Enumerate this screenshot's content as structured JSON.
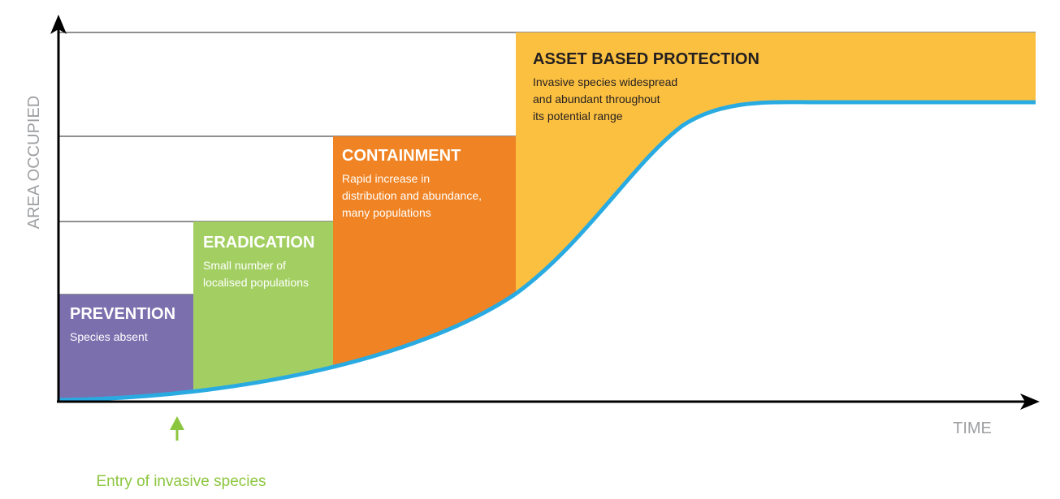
{
  "axes": {
    "y_label": "AREA OCCUPIED",
    "x_label": "TIME"
  },
  "stages": [
    {
      "title": "PREVENTION",
      "description": [
        "Species absent"
      ]
    },
    {
      "title": "ERADICATION",
      "description": [
        "Small number of",
        "localised populations"
      ]
    },
    {
      "title": "CONTAINMENT",
      "description": [
        "Rapid increase in",
        "distribution and abundance,",
        "many populations"
      ]
    },
    {
      "title": "ASSET BASED PROTECTION",
      "description": [
        "Invasive species widespread",
        "and abundant throughout",
        "its potential range"
      ]
    }
  ],
  "annotation": "Entry of invasive species"
}
